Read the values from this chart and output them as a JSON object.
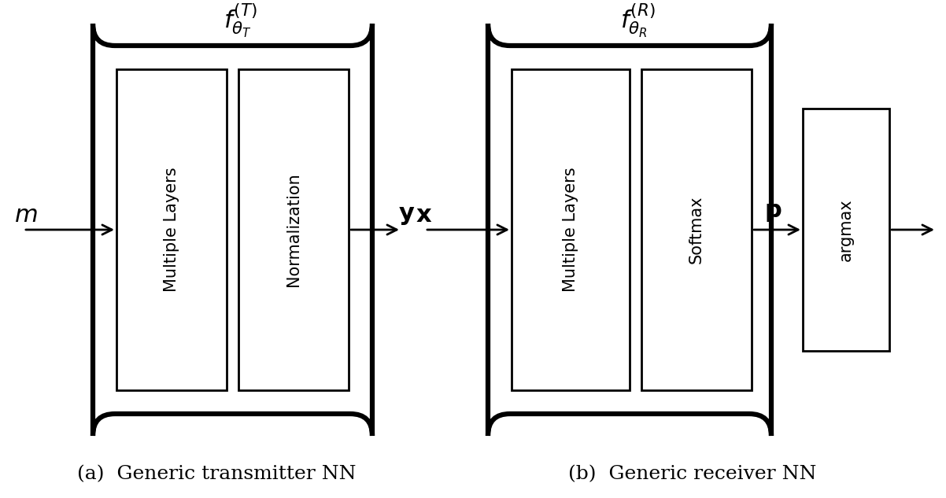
{
  "fig_width": 12.02,
  "fig_height": 6.33,
  "bg_color": "#ffffff",
  "line_color": "#000000",
  "lw_thin": 2.0,
  "lw_thick": 4.5,
  "caption_a": "(a)  Generic transmitter NN",
  "caption_b": "(b)  Generic receiver NN",
  "tx_label_box1": "Multiple Layers",
  "tx_label_box2": "Normalization",
  "rx_label_box1": "Multiple Layers",
  "rx_label_box2": "Softmax",
  "rx_label_box3": "argmax",
  "font_size_box": 15,
  "font_size_label": 20,
  "font_size_caption": 18
}
